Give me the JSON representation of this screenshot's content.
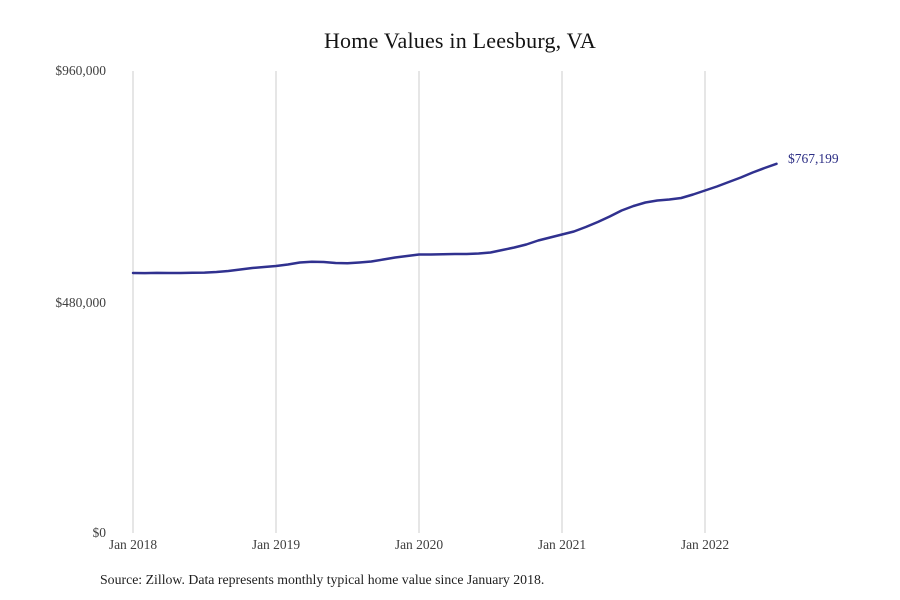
{
  "title": "Home Values in Leesburg, VA",
  "annotation": {
    "label": "$767,199"
  },
  "source": "Source: Zillow. Data represents monthly typical home value since January 2018.",
  "colors": {
    "line": "#30318f",
    "annotation": "#2b2d84",
    "grid": "#cccccc",
    "tick_text": "#3f3f3f",
    "title_text": "#141414"
  },
  "chart_data": {
    "type": "line",
    "title": "Home Values in Leesburg, VA",
    "xlabel": "",
    "ylabel": "",
    "ylim": [
      0,
      960000
    ],
    "grid": "vertical-only",
    "legend": "none",
    "y_ticks": [
      {
        "label": "$960,000",
        "value": 960000
      },
      {
        "label": "$480,000",
        "value": 480000
      },
      {
        "label": "$0",
        "value": 0
      }
    ],
    "x_ticks": [
      {
        "label": "Jan 2018",
        "month_index": 0
      },
      {
        "label": "Jan 2019",
        "month_index": 12
      },
      {
        "label": "Jan 2020",
        "month_index": 24
      },
      {
        "label": "Jan 2021",
        "month_index": 36
      },
      {
        "label": "Jan 2022",
        "month_index": 48
      }
    ],
    "series": [
      {
        "name": "Typical home value",
        "x": [
          "Jan 2018",
          "Feb 2018",
          "Mar 2018",
          "Apr 2018",
          "May 2018",
          "Jun 2018",
          "Jul 2018",
          "Aug 2018",
          "Sep 2018",
          "Oct 2018",
          "Nov 2018",
          "Dec 2018",
          "Jan 2019",
          "Feb 2019",
          "Mar 2019",
          "Apr 2019",
          "May 2019",
          "Jun 2019",
          "Jul 2019",
          "Aug 2019",
          "Sep 2019",
          "Oct 2019",
          "Nov 2019",
          "Dec 2019",
          "Jan 2020",
          "Feb 2020",
          "Mar 2020",
          "Apr 2020",
          "May 2020",
          "Jun 2020",
          "Jul 2020",
          "Aug 2020",
          "Sep 2020",
          "Oct 2020",
          "Nov 2020",
          "Dec 2020",
          "Jan 2021",
          "Feb 2021",
          "Mar 2021",
          "Apr 2021",
          "May 2021",
          "Jun 2021",
          "Jul 2021",
          "Aug 2021",
          "Sep 2021",
          "Oct 2021",
          "Nov 2021",
          "Dec 2021",
          "Jan 2022",
          "Feb 2022",
          "Mar 2022",
          "Apr 2022",
          "May 2022",
          "Jun 2022",
          "Jul 2022"
        ],
        "values": [
          540300,
          540100,
          540400,
          540200,
          540300,
          540600,
          541000,
          542300,
          544500,
          547600,
          550700,
          552700,
          554800,
          557900,
          562100,
          563500,
          563100,
          561000,
          560400,
          562100,
          564200,
          568300,
          572500,
          575600,
          578700,
          578700,
          579100,
          579800,
          579800,
          580800,
          582900,
          588100,
          593300,
          599500,
          607800,
          614000,
          620300,
          626500,
          635900,
          646300,
          657700,
          670100,
          679500,
          686800,
          690900,
          693000,
          696100,
          703400,
          711700,
          720000,
          729400,
          738700,
          749100,
          758400,
          767199
        ]
      }
    ],
    "final_value_label": "$767,199"
  }
}
